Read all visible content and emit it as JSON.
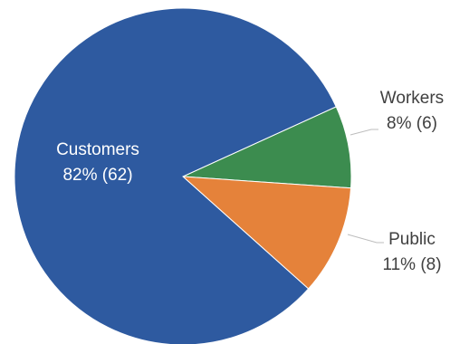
{
  "chart_data": {
    "type": "pie",
    "title": "",
    "slices": [
      {
        "name": "Customers",
        "percent_label": "82% (62)",
        "value": 62,
        "color": "#2E5AA0"
      },
      {
        "name": "Workers",
        "percent_label": "8% (6)",
        "value": 6,
        "color": "#3C8C4F"
      },
      {
        "name": "Public",
        "percent_label": "11% (8)",
        "value": 8,
        "color": "#E5823A"
      }
    ],
    "legend": "none",
    "label_color_inside": "#ffffff",
    "label_color_outside": "#404040",
    "leader_line_color": "#bdbdbd"
  }
}
